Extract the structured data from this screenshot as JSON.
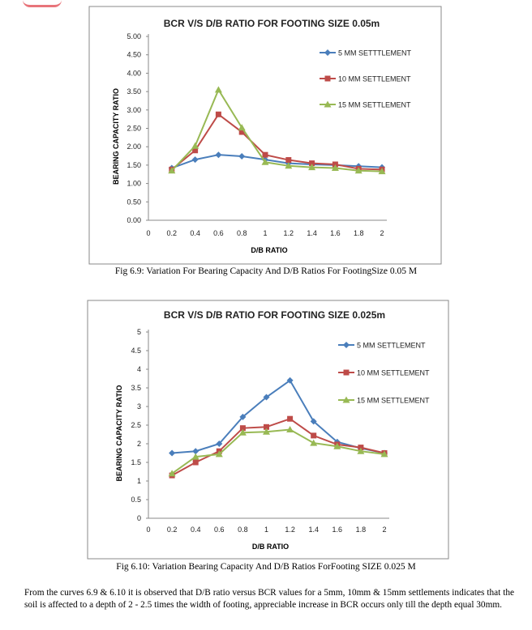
{
  "chart_data": [
    {
      "type": "line",
      "title": "BCR V/S D/B RATIO FOR FOOTING SIZE 0.05m",
      "xlabel": "D/B RATIO",
      "ylabel": "BEARING CAPACITY RATIO",
      "x_ticks": [
        "0",
        "0.2",
        "0.4",
        "0.6",
        "0.8",
        "1",
        "1.2",
        "1.4",
        "1.6",
        "1.8",
        "2"
      ],
      "y_ticks": [
        "0.00",
        "0.50",
        "1.00",
        "1.50",
        "2.00",
        "2.50",
        "3.00",
        "3.50",
        "4.00",
        "4.50",
        "5.00"
      ],
      "xlim": [
        0,
        2
      ],
      "ylim": [
        0,
        5
      ],
      "grid": false,
      "legend": "right",
      "x": [
        0.2,
        0.4,
        0.6,
        0.8,
        1.0,
        1.2,
        1.4,
        1.6,
        1.8,
        2.0
      ],
      "series": [
        {
          "name": "5 MM SETTTLEMENT",
          "color": "#4a7ebb",
          "marker": "diamond",
          "values": [
            1.42,
            1.65,
            1.78,
            1.74,
            1.65,
            1.55,
            1.52,
            1.5,
            1.47,
            1.44
          ]
        },
        {
          "name": "10 MM SETTLEMENT",
          "color": "#be4b48",
          "marker": "square",
          "values": [
            1.38,
            1.9,
            2.88,
            2.4,
            1.78,
            1.64,
            1.55,
            1.52,
            1.4,
            1.38
          ]
        },
        {
          "name": "15 MM SETTLEMENT",
          "color": "#98b954",
          "marker": "triangle",
          "values": [
            1.35,
            2.02,
            3.55,
            2.52,
            1.58,
            1.48,
            1.44,
            1.42,
            1.35,
            1.33
          ]
        }
      ]
    },
    {
      "type": "line",
      "title": "BCR V/S D/B RATIO FOR FOOTING SIZE 0.025m",
      "xlabel": "D/B RATIO",
      "ylabel": "BEARING CAPACITY RATIO",
      "x_ticks": [
        "0",
        "0.2",
        "0.4",
        "0.6",
        "0.8",
        "1",
        "1.2",
        "1.4",
        "1.6",
        "1.8",
        "2"
      ],
      "y_ticks": [
        "0",
        "0.5",
        "1",
        "1.5",
        "2",
        "2.5",
        "3",
        "3.5",
        "4",
        "4.5",
        "5"
      ],
      "xlim": [
        0,
        2
      ],
      "ylim": [
        0,
        5
      ],
      "grid": false,
      "legend": "right",
      "x": [
        0.2,
        0.4,
        0.6,
        0.8,
        1.0,
        1.2,
        1.4,
        1.6,
        1.8,
        2.0
      ],
      "series": [
        {
          "name": "5 MM SETTLEMENT",
          "color": "#4a7ebb",
          "marker": "diamond",
          "values": [
            1.75,
            1.8,
            2.0,
            2.72,
            3.25,
            3.7,
            2.6,
            2.05,
            1.88,
            1.75
          ]
        },
        {
          "name": "10 MM SETTLEMENT",
          "color": "#be4b48",
          "marker": "square",
          "values": [
            1.15,
            1.5,
            1.8,
            2.42,
            2.45,
            2.67,
            2.22,
            1.98,
            1.9,
            1.75
          ]
        },
        {
          "name": "15 MM SETTLEMENT",
          "color": "#98b954",
          "marker": "triangle",
          "values": [
            1.2,
            1.65,
            1.72,
            2.3,
            2.32,
            2.38,
            2.02,
            1.93,
            1.8,
            1.72
          ]
        }
      ]
    }
  ],
  "captions": {
    "fig1": "Fig 6.9: Variation For Bearing Capacity And D/B Ratios For FootingSize 0.05 M",
    "fig2": "Fig 6.10: Variation Bearing Capacity And D/B Ratios ForFooting SIZE 0.025 M"
  },
  "paragraph": "From the curves 6.9 & 6.10 it is observed that D/B ratio versus BCR values for a 5mm, 10mm & 15mm settlements indicates that the soil is affected to a depth of 2  - 2.5 times the width of footing, appreciable increase in BCR occurs only till the depth equal 30mm."
}
